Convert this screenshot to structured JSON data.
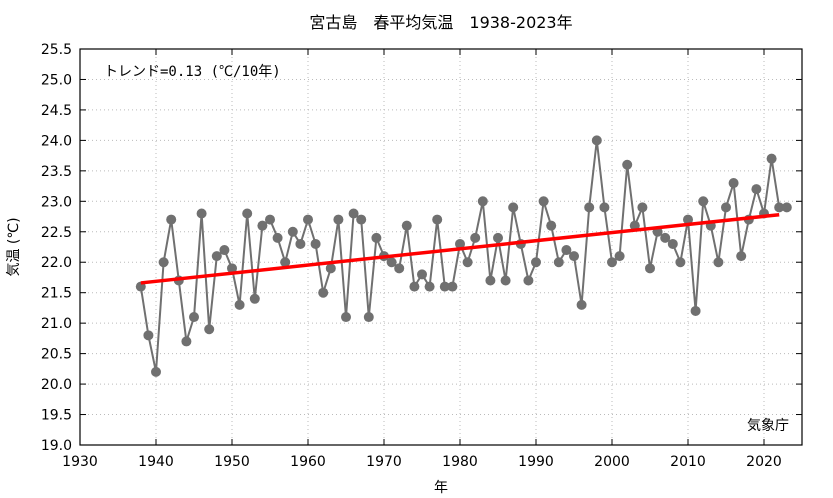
{
  "chart_data": {
    "type": "line",
    "title": "宮古島　春平均気温　1938-2023年",
    "xlabel": "年",
    "ylabel": "気温 (℃)",
    "xlim": [
      1930,
      2025
    ],
    "ylim": [
      19.0,
      25.5
    ],
    "xticks": [
      1930,
      1940,
      1950,
      1960,
      1970,
      1980,
      1990,
      2000,
      2010,
      2020
    ],
    "yticks": [
      "19.0",
      "19.5",
      "20.0",
      "20.5",
      "21.0",
      "21.5",
      "22.0",
      "22.5",
      "23.0",
      "23.5",
      "24.0",
      "24.5",
      "25.0",
      "25.5"
    ],
    "grid": true,
    "annotation": "トレンド=0.13 (℃/10年)",
    "source_label": "気象庁",
    "colors": {
      "series": "#707070",
      "trend": "#ff0000",
      "grid": "#bbbbbb"
    },
    "series": [
      {
        "x": [
          1938,
          1939,
          1940,
          1941,
          1942,
          1943,
          1944,
          1945,
          1946,
          1947,
          1948,
          1949,
          1950,
          1951,
          1952,
          1953,
          1954,
          1955,
          1956,
          1957,
          1958,
          1959,
          1960,
          1961,
          1962,
          1963,
          1964,
          1965,
          1966,
          1967,
          1968,
          1969,
          1970,
          1971,
          1972,
          1973,
          1974,
          1975,
          1976,
          1977,
          1978,
          1979,
          1980,
          1981,
          1982,
          1983,
          1984,
          1985,
          1986,
          1987,
          1988,
          1989,
          1990,
          1991,
          1992,
          1993,
          1994,
          1995,
          1996,
          1997,
          1998,
          1999,
          2000,
          2001,
          2002,
          2003,
          2004,
          2005,
          2006,
          2007,
          2008,
          2009,
          2010,
          2011,
          2012,
          2013,
          2014,
          2015,
          2016,
          2017,
          2018,
          2019,
          2020,
          2021,
          2022,
          2023
        ],
        "values": [
          21.6,
          20.8,
          20.2,
          22.0,
          22.7,
          21.7,
          20.7,
          21.1,
          22.8,
          20.9,
          22.1,
          22.2,
          21.9,
          21.3,
          22.8,
          21.4,
          22.6,
          22.7,
          22.4,
          22.0,
          22.5,
          22.3,
          22.7,
          22.3,
          21.5,
          21.9,
          22.7,
          21.1,
          22.8,
          22.7,
          21.1,
          22.4,
          22.1,
          22.0,
          21.9,
          22.6,
          21.6,
          21.8,
          21.6,
          22.7,
          21.6,
          21.6,
          22.3,
          22.0,
          22.4,
          23.0,
          21.7,
          22.4,
          21.7,
          22.9,
          22.3,
          21.7,
          22.0,
          23.0,
          22.6,
          22.0,
          22.2,
          22.1,
          21.3,
          22.9,
          24.0,
          22.9,
          22.0,
          22.1,
          23.6,
          22.6,
          22.9,
          21.9,
          22.5,
          22.4,
          22.3,
          22.0,
          22.7,
          21.2,
          23.0,
          22.6,
          22.0,
          22.9,
          23.3,
          22.1,
          22.7,
          23.2,
          22.8,
          23.7,
          22.9,
          22.9
        ]
      }
    ],
    "trend": {
      "x": [
        1938,
        2022
      ],
      "values": [
        21.66,
        22.78
      ]
    }
  }
}
